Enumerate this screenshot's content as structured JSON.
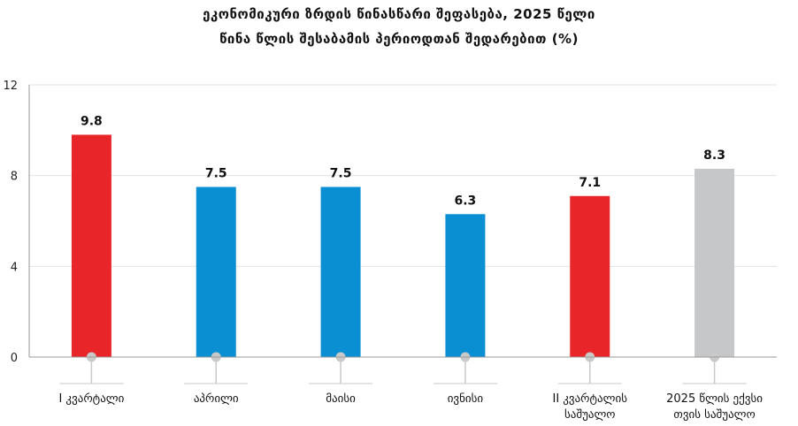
{
  "chart_data": {
    "type": "bar",
    "title_line1": "ეკონომიკური ზრდის წინასწარი შეფასება,  2025 წელი",
    "title_line2": "წინა წლის შესაბამის პერიოდთან შედარებით (%)",
    "xlabel": "",
    "ylabel": "",
    "ylim": [
      0,
      12
    ],
    "yticks": [
      0,
      4,
      8,
      12
    ],
    "grid": true,
    "categories": [
      [
        "I კვარტალი"
      ],
      [
        "აპრილი"
      ],
      [
        "მაისი"
      ],
      [
        "ივნისი"
      ],
      [
        "II კვარტალის",
        "საშუალო"
      ],
      [
        "2025 წლის ექვსი",
        "თვის საშუალო"
      ]
    ],
    "values": [
      9.8,
      7.5,
      7.5,
      6.3,
      7.1,
      8.3
    ],
    "data_labels": [
      "9.8",
      "7.5",
      "7.5",
      "6.3",
      "7.1",
      "8.3"
    ],
    "bar_colors": [
      "#e8262a",
      "#0a8fd3",
      "#0a8fd3",
      "#0a8fd3",
      "#e8262a",
      "#c6c7c9"
    ],
    "colors": {
      "grid": "#e3e3e3",
      "axis": "#9a9a9a",
      "marker": "#c9c9c9"
    }
  }
}
